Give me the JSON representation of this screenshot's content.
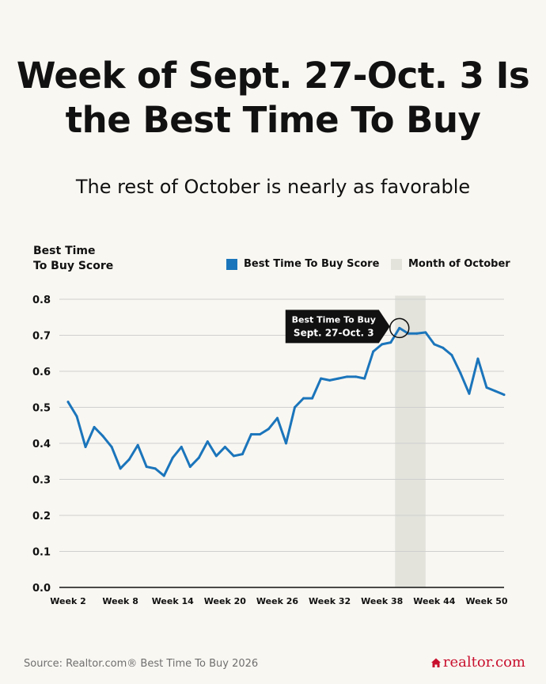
{
  "title": "Week of Sept. 27-Oct. 3 Is the Best Time To Buy",
  "subtitle": "The rest of October is nearly as favorable",
  "source": "Source: Realtor.com® Best Time To Buy 2026",
  "logo_text": "realtor.com",
  "legend": {
    "line_label": "Best Time To Buy Score",
    "band_label": "Month of October"
  },
  "colors": {
    "line": "#1b75bb",
    "band": "#e3e3dc",
    "callout": "#111111",
    "brand": "#c8102e"
  },
  "chart_data": {
    "type": "line",
    "ylabel": "Best Time\nTo Buy Score",
    "ylim": [
      0,
      0.8
    ],
    "yticks": [
      "0.0",
      "0.1",
      "0.2",
      "0.3",
      "0.4",
      "0.5",
      "0.6",
      "0.7",
      "0.8"
    ],
    "xlim": [
      1,
      52
    ],
    "xticks": [
      {
        "week": 2,
        "label": "Week 2"
      },
      {
        "week": 8,
        "label": "Week 8"
      },
      {
        "week": 14,
        "label": "Week 14"
      },
      {
        "week": 20,
        "label": "Week 20"
      },
      {
        "week": 26,
        "label": "Week 26"
      },
      {
        "week": 32,
        "label": "Week 32"
      },
      {
        "week": 38,
        "label": "Week 38"
      },
      {
        "week": 44,
        "label": "Week 44"
      },
      {
        "week": 50,
        "label": "Week 50"
      }
    ],
    "grid": "horizontal",
    "legend_position": "top-right",
    "highlight_band": {
      "label": "Month of October",
      "week_start": 40,
      "week_end": 43
    },
    "series": [
      {
        "name": "Best Time To Buy Score",
        "x": [
          2,
          3,
          4,
          5,
          6,
          7,
          8,
          9,
          10,
          11,
          12,
          13,
          14,
          15,
          16,
          17,
          18,
          19,
          20,
          21,
          22,
          23,
          24,
          25,
          26,
          27,
          28,
          29,
          30,
          31,
          32,
          33,
          34,
          35,
          36,
          37,
          38,
          39,
          40,
          41,
          42,
          43,
          44,
          45,
          46,
          47,
          48,
          49,
          50,
          51,
          52
        ],
        "values": [
          0.515,
          0.475,
          0.39,
          0.445,
          0.42,
          0.39,
          0.33,
          0.355,
          0.395,
          0.335,
          0.33,
          0.31,
          0.36,
          0.39,
          0.335,
          0.36,
          0.405,
          0.365,
          0.39,
          0.365,
          0.37,
          0.425,
          0.425,
          0.44,
          0.47,
          0.4,
          0.5,
          0.525,
          0.525,
          0.58,
          0.575,
          0.58,
          0.585,
          0.585,
          0.58,
          0.655,
          0.675,
          0.68,
          0.72,
          0.705,
          0.705,
          0.708,
          0.675,
          0.665,
          0.645,
          0.595,
          0.538,
          0.635,
          0.555,
          0.545,
          0.535
        ]
      }
    ],
    "annotations": [
      {
        "text": "Best Time To Buy\nSept. 27-Oct. 3",
        "week": 40,
        "value": 0.72
      }
    ]
  }
}
